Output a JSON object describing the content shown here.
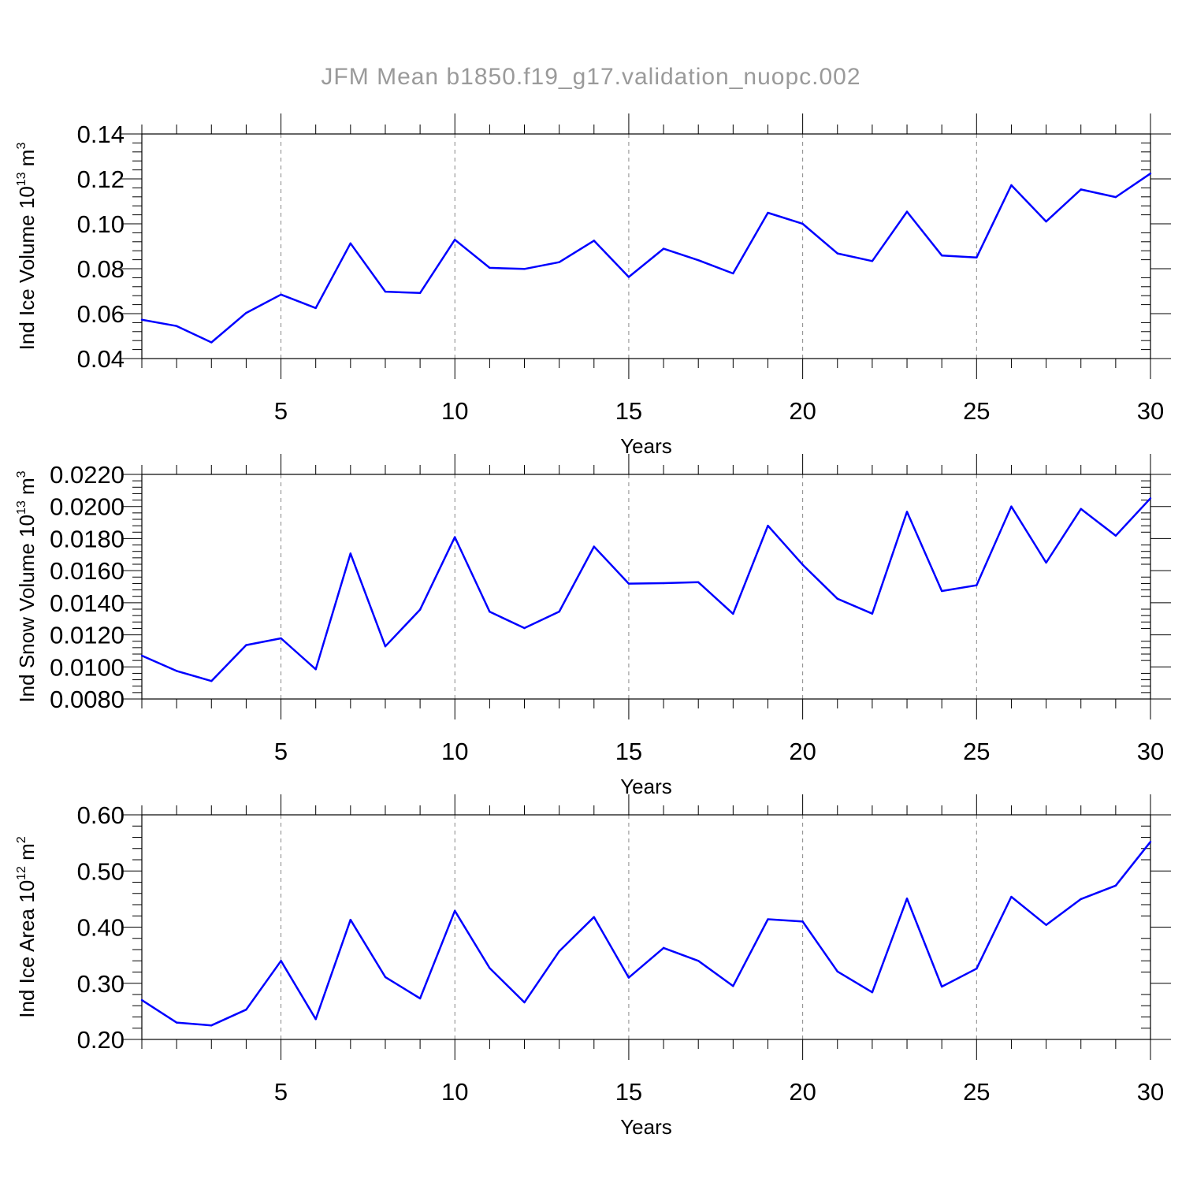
{
  "title": "JFM Mean b1850.f19_g17.validation_nuopc.002",
  "line_color": "#0000ff",
  "chart_data": [
    {
      "type": "line",
      "ylabel": "Ind Ice Volume 10",
      "ylabel_sup": "13",
      "ylabel_unit": " m",
      "ylabel_unit_sup": "3",
      "xlabel": "Years",
      "xlim": [
        1,
        30
      ],
      "ylim": [
        0.04,
        0.14
      ],
      "x_ticks": [
        5,
        10,
        15,
        20,
        25,
        30
      ],
      "x_tick_labels": [
        "5",
        "10",
        "15",
        "20",
        "25",
        "30"
      ],
      "y_ticks": [
        0.04,
        0.06,
        0.08,
        0.1,
        0.12,
        0.14
      ],
      "y_tick_labels": [
        "0.04",
        "0.06",
        "0.08",
        "0.10",
        "0.12",
        "0.14"
      ],
      "grid": "vertical dashed at x ticks",
      "x": [
        1,
        2,
        3,
        4,
        5,
        6,
        7,
        8,
        9,
        10,
        11,
        12,
        13,
        14,
        15,
        16,
        17,
        18,
        19,
        20,
        21,
        22,
        23,
        24,
        25,
        26,
        27,
        28,
        29,
        30
      ],
      "values": [
        0.0573,
        0.0545,
        0.0472,
        0.0603,
        0.0685,
        0.0625,
        0.0913,
        0.0698,
        0.0692,
        0.0929,
        0.0804,
        0.0799,
        0.0829,
        0.0925,
        0.0763,
        0.0889,
        0.0838,
        0.0779,
        0.1049,
        0.1,
        0.0868,
        0.0834,
        0.1054,
        0.0859,
        0.085,
        0.1172,
        0.101,
        0.1153,
        0.1119,
        0.1224
      ]
    },
    {
      "type": "line",
      "ylabel": "Ind Snow Volume 10",
      "ylabel_sup": "13",
      "ylabel_unit": " m",
      "ylabel_unit_sup": "3",
      "xlabel": "Years",
      "xlim": [
        1,
        30
      ],
      "ylim": [
        0.008,
        0.022
      ],
      "x_ticks": [
        5,
        10,
        15,
        20,
        25,
        30
      ],
      "x_tick_labels": [
        "5",
        "10",
        "15",
        "20",
        "25",
        "30"
      ],
      "y_ticks": [
        0.008,
        0.01,
        0.012,
        0.014,
        0.016,
        0.018,
        0.02,
        0.022
      ],
      "y_tick_labels": [
        "0.0080",
        "0.0100",
        "0.0120",
        "0.0140",
        "0.0160",
        "0.0180",
        "0.0200",
        "0.0220"
      ],
      "grid": "vertical dashed at x ticks",
      "x": [
        1,
        2,
        3,
        4,
        5,
        6,
        7,
        8,
        9,
        10,
        11,
        12,
        13,
        14,
        15,
        16,
        17,
        18,
        19,
        20,
        21,
        22,
        23,
        24,
        25,
        26,
        27,
        28,
        29,
        30
      ],
      "values": [
        0.0107,
        0.00975,
        0.00912,
        0.01136,
        0.01178,
        0.00985,
        0.01707,
        0.01128,
        0.01357,
        0.01809,
        0.01344,
        0.01242,
        0.01345,
        0.0175,
        0.01519,
        0.01522,
        0.01528,
        0.01331,
        0.0188,
        0.01637,
        0.01425,
        0.01332,
        0.01967,
        0.01473,
        0.01509,
        0.02,
        0.0165,
        0.01985,
        0.01818,
        0.02051
      ]
    },
    {
      "type": "line",
      "ylabel": "Ind Ice Area 10",
      "ylabel_sup": "12",
      "ylabel_unit": " m",
      "ylabel_unit_sup": "2",
      "xlabel": "Years",
      "xlim": [
        1,
        30
      ],
      "ylim": [
        0.2,
        0.6
      ],
      "x_ticks": [
        5,
        10,
        15,
        20,
        25,
        30
      ],
      "x_tick_labels": [
        "5",
        "10",
        "15",
        "20",
        "25",
        "30"
      ],
      "y_ticks": [
        0.2,
        0.3,
        0.4,
        0.5,
        0.6
      ],
      "y_tick_labels": [
        "0.20",
        "0.30",
        "0.40",
        "0.50",
        "0.60"
      ],
      "grid": "vertical dashed at x ticks",
      "x": [
        1,
        2,
        3,
        4,
        5,
        6,
        7,
        8,
        9,
        10,
        11,
        12,
        13,
        14,
        15,
        16,
        17,
        18,
        19,
        20,
        21,
        22,
        23,
        24,
        25,
        26,
        27,
        28,
        29,
        30
      ],
      "values": [
        0.27,
        0.23,
        0.225,
        0.253,
        0.34,
        0.236,
        0.413,
        0.311,
        0.273,
        0.429,
        0.327,
        0.266,
        0.357,
        0.418,
        0.31,
        0.363,
        0.34,
        0.295,
        0.414,
        0.41,
        0.321,
        0.284,
        0.451,
        0.294,
        0.326,
        0.454,
        0.404,
        0.45,
        0.474,
        0.552
      ]
    }
  ]
}
